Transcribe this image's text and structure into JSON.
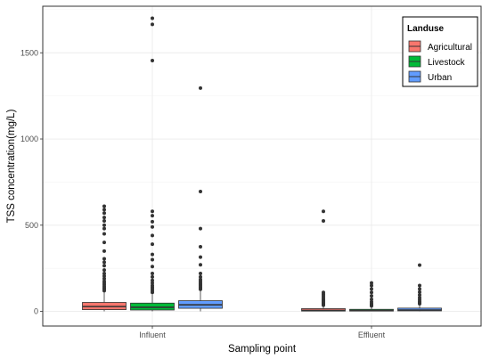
{
  "chart_data": {
    "type": "boxplot",
    "xlabel": "Sampling point",
    "ylabel": "TSS concentration(mg/L)",
    "categories": [
      "Influent",
      "Effluent"
    ],
    "ylim": [
      -85,
      1770
    ],
    "yticks": [
      0,
      500,
      1000,
      1500
    ],
    "ytick_labels": [
      "0",
      "500",
      "1000",
      "1500"
    ],
    "grid": true,
    "legend": {
      "title": "Landuse",
      "position": "top-right",
      "entries": [
        "Agricultural",
        "Livestock",
        "Urban"
      ]
    },
    "series": [
      {
        "name": "Agricultural",
        "color": "#F8766D",
        "boxes": [
          {
            "category": "Influent",
            "q1": 10,
            "median": 28,
            "q3": 52,
            "whisker_low": 0,
            "whisker_high": 110,
            "outliers": [
              120,
              128,
              136,
              145,
              155,
              165,
              175,
              190,
              205,
              220,
              240,
              265,
              285,
              305,
              350,
              400,
              450,
              480,
              500,
              525,
              545,
              570,
              590,
              610
            ]
          },
          {
            "category": "Effluent",
            "q1": 2,
            "median": 6,
            "q3": 16,
            "whisker_low": 0,
            "whisker_high": 32,
            "outliers": [
              36,
              40,
              45,
              50,
              55,
              62,
              70,
              80,
              90,
              100,
              110,
              525,
              580
            ]
          }
        ]
      },
      {
        "name": "Livestock",
        "color": "#00BA38",
        "boxes": [
          {
            "category": "Influent",
            "q1": 8,
            "median": 24,
            "q3": 48,
            "whisker_low": 0,
            "whisker_high": 100,
            "outliers": [
              110,
              120,
              130,
              140,
              150,
              165,
              180,
              200,
              220,
              260,
              300,
              330,
              390,
              440,
              490,
              520,
              555,
              580,
              1455,
              1665,
              1700
            ]
          },
          {
            "category": "Effluent",
            "q1": 2,
            "median": 5,
            "q3": 12,
            "whisker_low": 0,
            "whisker_high": 26,
            "outliers": [
              32,
              38,
              45,
              55,
              70,
              90,
              110,
              130,
              150,
              165
            ]
          }
        ]
      },
      {
        "name": "Urban",
        "color": "#619CFF",
        "boxes": [
          {
            "category": "Influent",
            "q1": 18,
            "median": 38,
            "q3": 62,
            "whisker_low": 0,
            "whisker_high": 120,
            "outliers": [
              128,
              135,
              142,
              150,
              158,
              166,
              175,
              185,
              200,
              220,
              270,
              315,
              375,
              480,
              695,
              1295
            ]
          },
          {
            "category": "Effluent",
            "q1": 3,
            "median": 8,
            "q3": 19,
            "whisker_low": 0,
            "whisker_high": 38,
            "outliers": [
              44,
              50,
              58,
              68,
              80,
              95,
              112,
              130,
              150,
              268
            ]
          }
        ]
      }
    ]
  }
}
